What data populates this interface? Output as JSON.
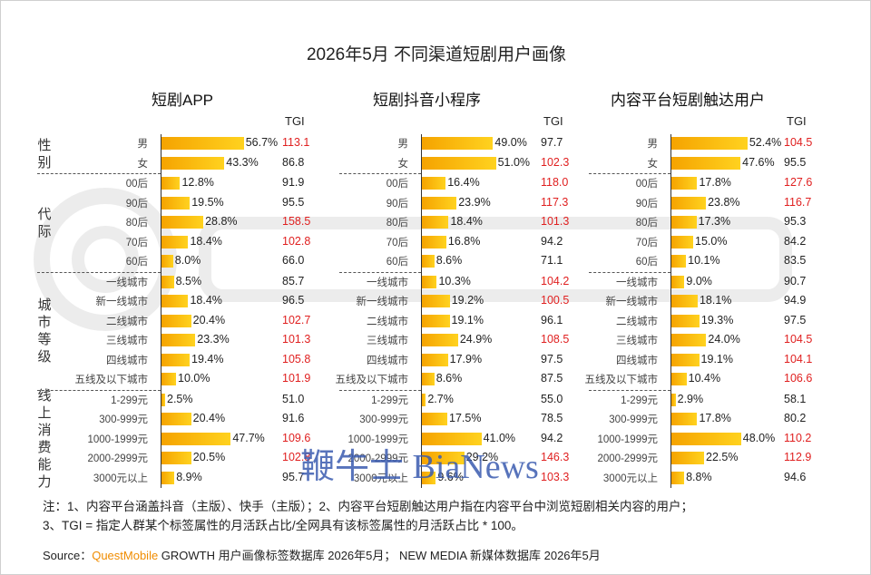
{
  "title": "2026年5月 不同渠道短剧用户画像",
  "tgi_header": "TGI",
  "chart_data": {
    "type": "bar",
    "title": "2026年5月 不同渠道短剧用户画像",
    "groups": [
      {
        "label": "性别",
        "categories": [
          "男",
          "女"
        ]
      },
      {
        "label": "代际",
        "categories": [
          "00后",
          "90后",
          "80后",
          "70后",
          "60后"
        ]
      },
      {
        "label": "城市等级",
        "categories": [
          "一线城市",
          "新一线城市",
          "二线城市",
          "三线城市",
          "四线城市",
          "五线及以下城市"
        ]
      },
      {
        "label": "线上消费能力",
        "categories": [
          "1-299元",
          "300-999元",
          "1000-1999元",
          "2000-2999元",
          "3000元以上"
        ]
      }
    ],
    "panels": [
      {
        "name": "短剧APP",
        "values": [
          56.7,
          43.3,
          12.8,
          19.5,
          28.8,
          18.4,
          8.0,
          8.5,
          18.4,
          20.4,
          23.3,
          19.4,
          10.0,
          2.5,
          20.4,
          47.7,
          20.5,
          8.9
        ],
        "labels": [
          "56.7%",
          "43.3%",
          "12.8%",
          "19.5%",
          "28.8%",
          "18.4%",
          "8.0%",
          "8.5%",
          "18.4%",
          "20.4%",
          "23.3%",
          "19.4%",
          "10.0%",
          "2.5%",
          "20.4%",
          "47.7%",
          "20.5%",
          "8.9%"
        ],
        "tgi": [
          "113.1",
          "86.8",
          "91.9",
          "95.5",
          "158.5",
          "102.8",
          "66.0",
          "85.7",
          "96.5",
          "102.7",
          "101.3",
          "105.8",
          "101.9",
          "51.0",
          "91.6",
          "109.6",
          "102.8",
          "95.7"
        ]
      },
      {
        "name": "短剧抖音小程序",
        "values": [
          49.0,
          51.0,
          16.4,
          23.9,
          18.4,
          16.8,
          8.6,
          10.3,
          19.2,
          19.1,
          24.9,
          17.9,
          8.6,
          2.7,
          17.5,
          41.0,
          29.2,
          9.6
        ],
        "labels": [
          "49.0%",
          "51.0%",
          "16.4%",
          "23.9%",
          "18.4%",
          "16.8%",
          "8.6%",
          "10.3%",
          "19.2%",
          "19.1%",
          "24.9%",
          "17.9%",
          "8.6%",
          "2.7%",
          "17.5%",
          "41.0%",
          "29.2%",
          "9.6%"
        ],
        "tgi": [
          "97.7",
          "102.3",
          "118.0",
          "117.3",
          "101.3",
          "94.2",
          "71.1",
          "104.2",
          "100.5",
          "96.1",
          "108.5",
          "97.5",
          "87.5",
          "55.0",
          "78.5",
          "94.2",
          "146.3",
          "103.3"
        ]
      },
      {
        "name": "内容平台短剧触达用户",
        "values": [
          52.4,
          47.6,
          17.8,
          23.8,
          17.3,
          15.0,
          10.1,
          9.0,
          18.1,
          19.3,
          24.0,
          19.1,
          10.4,
          2.9,
          17.8,
          48.0,
          22.5,
          8.8
        ],
        "labels": [
          "52.4%",
          "47.6%",
          "17.8%",
          "23.8%",
          "17.3%",
          "15.0%",
          "10.1%",
          "9.0%",
          "18.1%",
          "19.3%",
          "24.0%",
          "19.1%",
          "10.4%",
          "2.9%",
          "17.8%",
          "48.0%",
          "22.5%",
          "8.8%"
        ],
        "tgi": [
          "104.5",
          "95.5",
          "127.6",
          "116.7",
          "95.3",
          "84.2",
          "83.5",
          "90.7",
          "94.9",
          "97.5",
          "104.5",
          "104.1",
          "106.6",
          "58.1",
          "80.2",
          "110.2",
          "112.9",
          "94.6"
        ]
      }
    ]
  },
  "colors": {
    "bar_start": "#f5a300",
    "bar_end": "#ffd21f",
    "tgi_high": "#e02020",
    "tgi_normal": "#222222",
    "brand": "#f08c00"
  },
  "notes": {
    "line1": "注：1、内容平台涵盖抖音（主版）、快手（主版）；2、内容平台短剧触达用户指在内容平台中浏览短剧相关内容的用户；",
    "line2": "3、TGI = 指定人群某个标签属性的月活跃占比/全网具有该标签属性的月活跃占比 * 100。"
  },
  "source": {
    "prefix": "Source：",
    "brand": "QuestMobile",
    "rest": " GROWTH 用户画像标签数据库 2026年5月； NEW MEDIA 新媒体数据库 2026年5月"
  },
  "watermark": "鞭牛士 BiaNews"
}
